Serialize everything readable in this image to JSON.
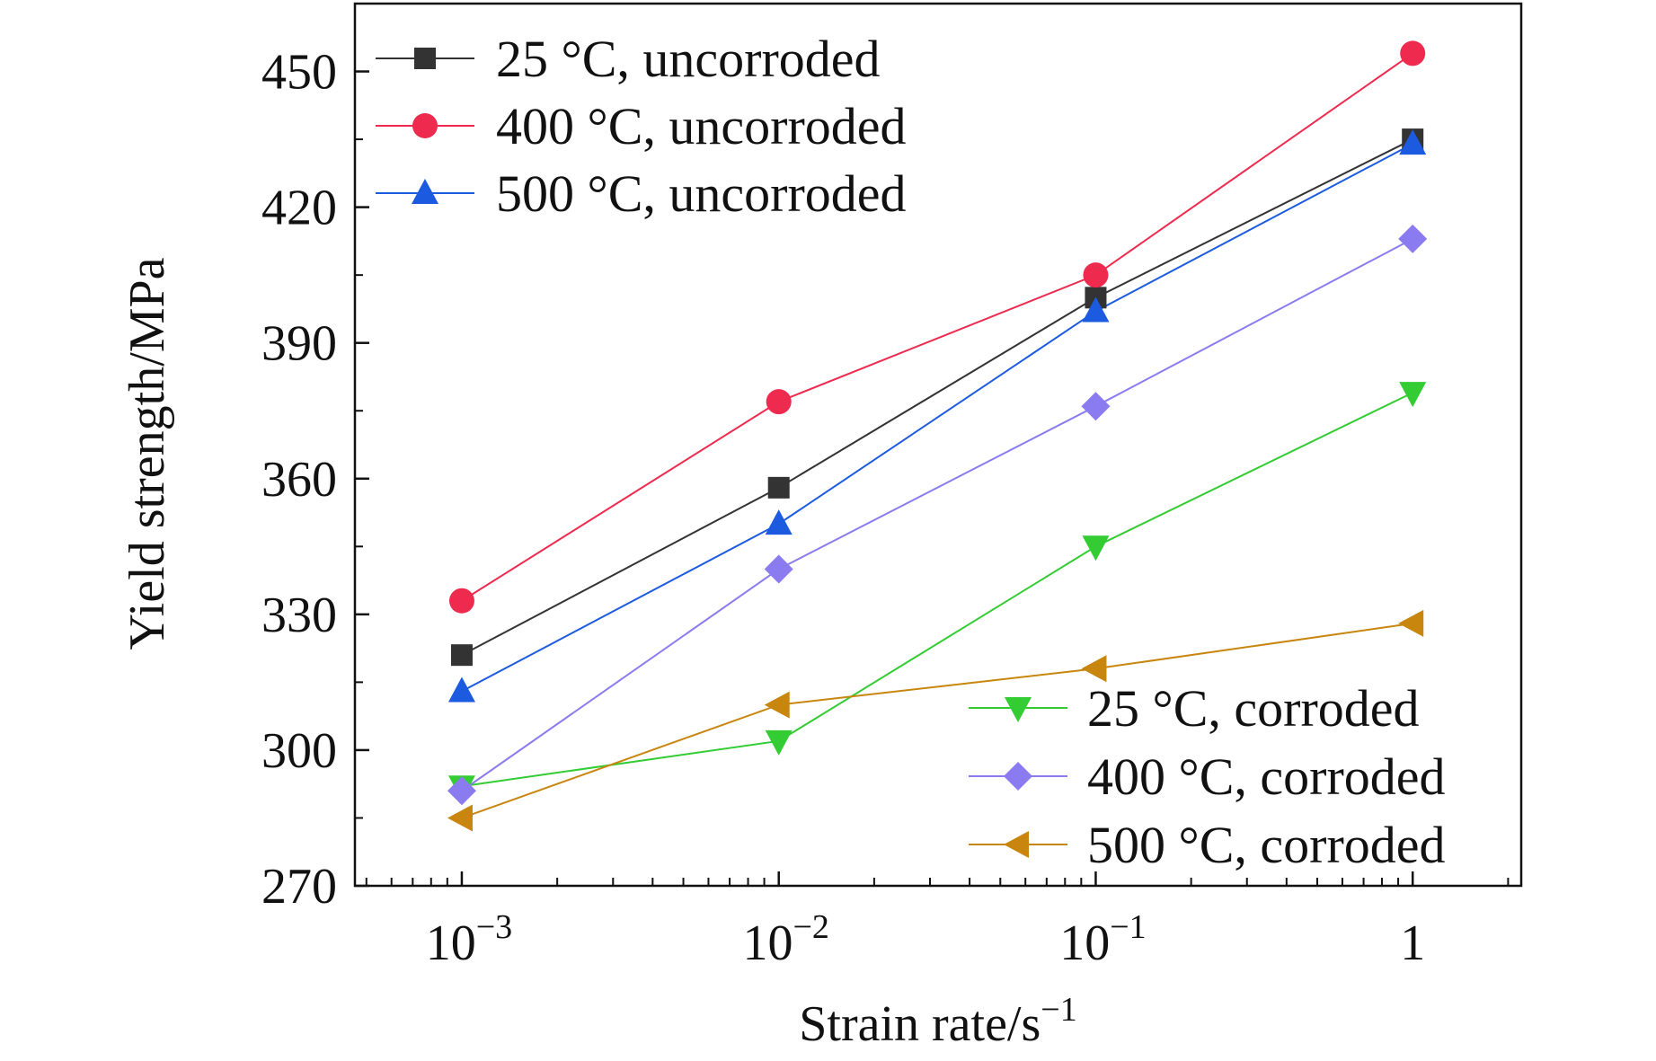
{
  "chart_data": {
    "type": "line",
    "xlabel": "Strain rate/s",
    "xlabel_superscript": "−1",
    "ylabel": "Yield strength/MPa",
    "xscale": "log",
    "xlim": [
      0.00046,
      2.2
    ],
    "ylim": [
      270,
      465
    ],
    "x_ticks": [
      {
        "value": 0.001,
        "base": "10",
        "exp": "−3"
      },
      {
        "value": 0.01,
        "base": "10",
        "exp": "−2"
      },
      {
        "value": 0.1,
        "base": "10",
        "exp": "−1"
      },
      {
        "value": 1,
        "base": "1",
        "exp": ""
      }
    ],
    "y_ticks": [
      {
        "value": 270,
        "label": "270"
      },
      {
        "value": 300,
        "label": "300"
      },
      {
        "value": 330,
        "label": "330"
      },
      {
        "value": 360,
        "label": "360"
      },
      {
        "value": 390,
        "label": "390"
      },
      {
        "value": 420,
        "label": "420"
      },
      {
        "value": 450,
        "label": "450"
      }
    ],
    "y_minor_step": 15,
    "x": [
      0.001,
      0.01,
      0.1,
      1
    ],
    "grid": false,
    "legend_upper_placement": "top-left",
    "legend_lower_placement": "bottom-right",
    "series": [
      {
        "name": "25 °C, uncorroded",
        "marker": "square",
        "color": "#333333",
        "values": [
          321,
          358,
          400,
          435
        ],
        "legend": "upper"
      },
      {
        "name": "400 °C, uncorroded",
        "marker": "circle",
        "color": "#ee2a4f",
        "values": [
          333,
          377,
          405,
          454
        ],
        "legend": "upper"
      },
      {
        "name": "500 °C, uncorroded",
        "marker": "triangle-up",
        "color": "#1c5be0",
        "values": [
          313,
          350,
          397,
          434
        ],
        "legend": "upper"
      },
      {
        "name": "25 °C, corroded",
        "marker": "triangle-down",
        "color": "#33cc33",
        "values": [
          292,
          302,
          345,
          379
        ],
        "legend": "lower"
      },
      {
        "name": "400 °C, corroded",
        "marker": "diamond",
        "color": "#8a7cf0",
        "values": [
          291,
          340,
          376,
          413
        ],
        "legend": "lower"
      },
      {
        "name": "500 °C, corroded",
        "marker": "triangle-left",
        "color": "#c8860f",
        "values": [
          285,
          310,
          318,
          328
        ],
        "legend": "lower"
      }
    ]
  }
}
